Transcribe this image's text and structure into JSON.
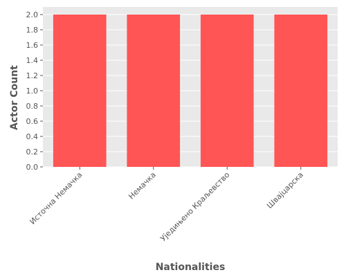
{
  "chart_data": {
    "type": "bar",
    "title": "",
    "xlabel": "Nationalities",
    "ylabel": "Actor Count",
    "categories": [
      "Источна Немачка",
      "Немачка",
      "Уједињено Краљевство",
      "Швајцарска"
    ],
    "values": [
      2,
      2,
      2,
      2
    ],
    "ylim": [
      0,
      2.1
    ],
    "yticks": [
      0.0,
      0.2,
      0.4,
      0.6,
      0.8,
      1.0,
      1.2,
      1.4,
      1.6,
      1.8,
      2.0
    ],
    "ytick_labels": [
      "0.0",
      "0.2",
      "0.4",
      "0.6",
      "0.8",
      "1.0",
      "1.2",
      "1.4",
      "1.6",
      "1.8",
      "2.0"
    ],
    "grid": true,
    "bar_color": "#ff5555",
    "background_color": "#e9e9e9",
    "grid_color": "#ffffff"
  }
}
